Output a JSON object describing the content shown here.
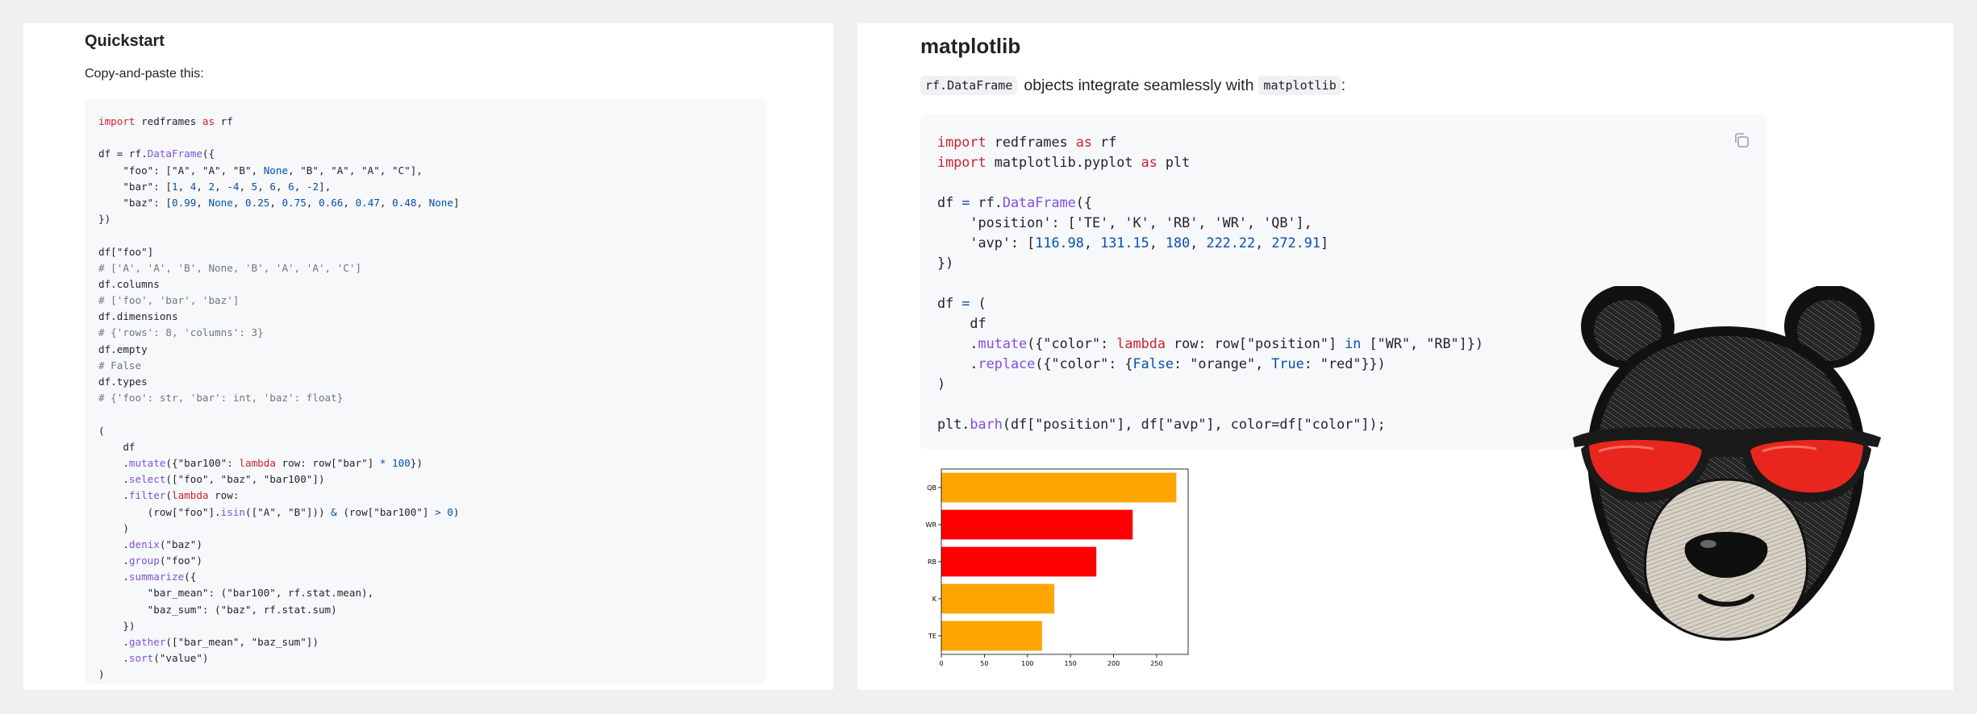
{
  "quickstart": {
    "title": "Quickstart",
    "intro": "Copy-and-paste this:",
    "code_lines": [
      [
        {
          "t": "import",
          "c": "k"
        },
        {
          "t": " redframes "
        },
        {
          "t": "as",
          "c": "k"
        },
        {
          "t": " rf"
        }
      ],
      [],
      [
        {
          "t": "df = rf."
        },
        {
          "t": "DataFrame",
          "c": "f"
        },
        {
          "t": "({"
        }
      ],
      [
        {
          "t": "    \"foo\": [\"A\", \"A\", \"B\", "
        },
        {
          "t": "None",
          "c": "n"
        },
        {
          "t": ", \"B\", \"A\", \"A\", \"C\"],"
        }
      ],
      [
        {
          "t": "    \"bar\": ["
        },
        {
          "t": "1",
          "c": "n"
        },
        {
          "t": ", "
        },
        {
          "t": "4",
          "c": "n"
        },
        {
          "t": ", "
        },
        {
          "t": "2",
          "c": "n"
        },
        {
          "t": ", "
        },
        {
          "t": "-4",
          "c": "n"
        },
        {
          "t": ", "
        },
        {
          "t": "5",
          "c": "n"
        },
        {
          "t": ", "
        },
        {
          "t": "6",
          "c": "n"
        },
        {
          "t": ", "
        },
        {
          "t": "6",
          "c": "n"
        },
        {
          "t": ", "
        },
        {
          "t": "-2",
          "c": "n"
        },
        {
          "t": "],"
        }
      ],
      [
        {
          "t": "    \"baz\": ["
        },
        {
          "t": "0.99",
          "c": "n"
        },
        {
          "t": ", "
        },
        {
          "t": "None",
          "c": "n"
        },
        {
          "t": ", "
        },
        {
          "t": "0.25",
          "c": "n"
        },
        {
          "t": ", "
        },
        {
          "t": "0.75",
          "c": "n"
        },
        {
          "t": ", "
        },
        {
          "t": "0.66",
          "c": "n"
        },
        {
          "t": ", "
        },
        {
          "t": "0.47",
          "c": "n"
        },
        {
          "t": ", "
        },
        {
          "t": "0.48",
          "c": "n"
        },
        {
          "t": ", "
        },
        {
          "t": "None",
          "c": "n"
        },
        {
          "t": "]"
        }
      ],
      [
        {
          "t": "})"
        }
      ],
      [],
      [
        {
          "t": "df[\"foo\"]"
        }
      ],
      [
        {
          "t": "# ['A', 'A', 'B', None, 'B', 'A', 'A', 'C']",
          "c": "c"
        }
      ],
      [
        {
          "t": "df.columns"
        }
      ],
      [
        {
          "t": "# ['foo', 'bar', 'baz']",
          "c": "c"
        }
      ],
      [
        {
          "t": "df.dimensions"
        }
      ],
      [
        {
          "t": "# {'rows': 8, 'columns': 3}",
          "c": "c"
        }
      ],
      [
        {
          "t": "df.empty"
        }
      ],
      [
        {
          "t": "# False",
          "c": "c"
        }
      ],
      [
        {
          "t": "df.types"
        }
      ],
      [
        {
          "t": "# {'foo': str, 'bar': int, 'baz': float}",
          "c": "c"
        }
      ],
      [],
      [
        {
          "t": "("
        }
      ],
      [
        {
          "t": "    df"
        }
      ],
      [
        {
          "t": "    ."
        },
        {
          "t": "mutate",
          "c": "f"
        },
        {
          "t": "({\"bar100\": "
        },
        {
          "t": "lambda",
          "c": "k"
        },
        {
          "t": " row: row[\"bar\"] "
        },
        {
          "t": "*",
          "c": "n"
        },
        {
          "t": " "
        },
        {
          "t": "100",
          "c": "n"
        },
        {
          "t": "})"
        }
      ],
      [
        {
          "t": "    ."
        },
        {
          "t": "select",
          "c": "f"
        },
        {
          "t": "([\"foo\", \"baz\", \"bar100\"])"
        }
      ],
      [
        {
          "t": "    ."
        },
        {
          "t": "filter",
          "c": "f"
        },
        {
          "t": "("
        },
        {
          "t": "lambda",
          "c": "k"
        },
        {
          "t": " row:"
        }
      ],
      [
        {
          "t": "        (row[\"foo\"]."
        },
        {
          "t": "isin",
          "c": "f"
        },
        {
          "t": "([\"A\", \"B\"])) "
        },
        {
          "t": "&",
          "c": "n"
        },
        {
          "t": " (row[\"bar100\"] "
        },
        {
          "t": ">",
          "c": "n"
        },
        {
          "t": " "
        },
        {
          "t": "0",
          "c": "n"
        },
        {
          "t": ")"
        }
      ],
      [
        {
          "t": "    )"
        }
      ],
      [
        {
          "t": "    ."
        },
        {
          "t": "denix",
          "c": "f"
        },
        {
          "t": "(\"baz\")"
        }
      ],
      [
        {
          "t": "    ."
        },
        {
          "t": "group",
          "c": "f"
        },
        {
          "t": "(\"foo\")"
        }
      ],
      [
        {
          "t": "    ."
        },
        {
          "t": "summarize",
          "c": "f"
        },
        {
          "t": "({"
        }
      ],
      [
        {
          "t": "        \"bar_mean\": (\"bar100\", rf.stat.mean),"
        }
      ],
      [
        {
          "t": "        \"baz_sum\": (\"baz\", rf.stat.sum)"
        }
      ],
      [
        {
          "t": "    })"
        }
      ],
      [
        {
          "t": "    ."
        },
        {
          "t": "gather",
          "c": "f"
        },
        {
          "t": "([\"bar_mean\", \"baz_sum\"])"
        }
      ],
      [
        {
          "t": "    ."
        },
        {
          "t": "sort",
          "c": "f"
        },
        {
          "t": "(\"value\")"
        }
      ],
      [
        {
          "t": ")"
        }
      ]
    ]
  },
  "matplotlib": {
    "title": "matplotlib",
    "intro_code1": "rf.DataFrame",
    "intro_text": "objects integrate seamlessly with",
    "intro_code2": "matplotlib",
    "intro_tail": ":",
    "copy_icon": "copy-icon",
    "code_lines": [
      [
        {
          "t": "import",
          "c": "k"
        },
        {
          "t": " redframes "
        },
        {
          "t": "as",
          "c": "k"
        },
        {
          "t": " rf"
        }
      ],
      [
        {
          "t": "import",
          "c": "k"
        },
        {
          "t": " matplotlib.pyplot "
        },
        {
          "t": "as",
          "c": "k"
        },
        {
          "t": " plt"
        }
      ],
      [],
      [
        {
          "t": "df "
        },
        {
          "t": "=",
          "c": "n"
        },
        {
          "t": " rf."
        },
        {
          "t": "DataFrame",
          "c": "f"
        },
        {
          "t": "({"
        }
      ],
      [
        {
          "t": "    'position': ['TE', 'K', 'RB', 'WR', 'QB'],"
        }
      ],
      [
        {
          "t": "    'avp': ["
        },
        {
          "t": "116.98",
          "c": "n"
        },
        {
          "t": ", "
        },
        {
          "t": "131.15",
          "c": "n"
        },
        {
          "t": ", "
        },
        {
          "t": "180",
          "c": "n"
        },
        {
          "t": ", "
        },
        {
          "t": "222.22",
          "c": "n"
        },
        {
          "t": ", "
        },
        {
          "t": "272.91",
          "c": "n"
        },
        {
          "t": "]"
        }
      ],
      [
        {
          "t": "})"
        }
      ],
      [],
      [
        {
          "t": "df "
        },
        {
          "t": "=",
          "c": "n"
        },
        {
          "t": " ("
        }
      ],
      [
        {
          "t": "    df"
        }
      ],
      [
        {
          "t": "    ."
        },
        {
          "t": "mutate",
          "c": "f"
        },
        {
          "t": "({\"color\": "
        },
        {
          "t": "lambda",
          "c": "k"
        },
        {
          "t": " row: row[\"position\"] "
        },
        {
          "t": "in",
          "c": "n"
        },
        {
          "t": " [\"WR\", \"RB\"]})"
        }
      ],
      [
        {
          "t": "    ."
        },
        {
          "t": "replace",
          "c": "f"
        },
        {
          "t": "({\"color\": {"
        },
        {
          "t": "False",
          "c": "n"
        },
        {
          "t": ": \"orange\", "
        },
        {
          "t": "True",
          "c": "n"
        },
        {
          "t": ": \"red\"}})"
        }
      ],
      [
        {
          "t": ")"
        }
      ],
      [],
      [
        {
          "t": "plt."
        },
        {
          "t": "barh",
          "c": "f"
        },
        {
          "t": "(df[\"position\"], df[\"avp\"], color=df[\"color\"]);"
        }
      ]
    ]
  },
  "chart_data": {
    "type": "bar",
    "orientation": "horizontal",
    "categories": [
      "TE",
      "K",
      "RB",
      "WR",
      "QB"
    ],
    "values": [
      116.98,
      131.15,
      180,
      222.22,
      272.91
    ],
    "colors": [
      "#ffa500",
      "#ffa500",
      "#ff0000",
      "#ff0000",
      "#ffa500"
    ],
    "xticks": [
      0,
      50,
      100,
      150,
      200,
      250
    ],
    "xlim": [
      0,
      286.6
    ],
    "title": "",
    "xlabel": "",
    "ylabel": ""
  },
  "mascot": {
    "icon": "bear-with-sunglasses",
    "lens_color": "#e8261e"
  }
}
